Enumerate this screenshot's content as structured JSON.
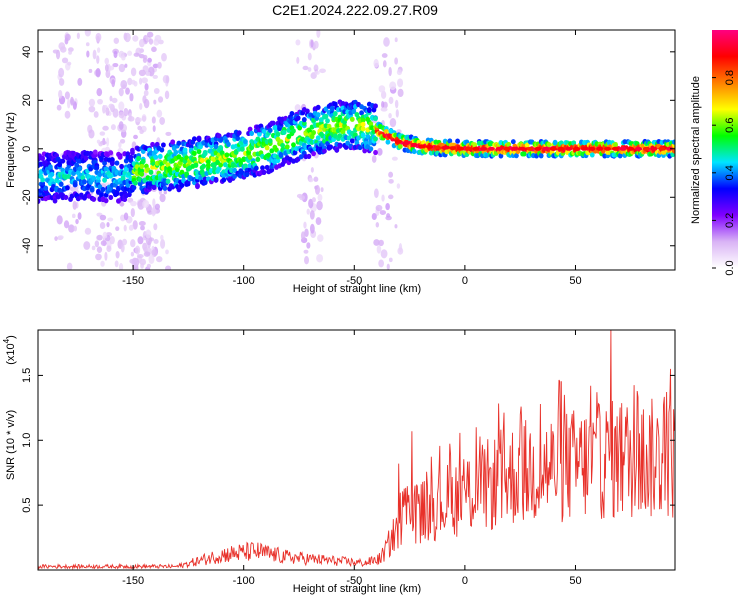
{
  "title": "C2E1.2024.222.09.27.R09",
  "chart_data": [
    {
      "type": "heatmap",
      "xlabel": "Height of straight line (km)",
      "ylabel": "Frequency (Hz)",
      "xlim": [
        -193,
        95
      ],
      "ylim": [
        -50,
        49
      ],
      "xticks": [
        -150,
        -100,
        -50,
        0,
        50
      ],
      "yticks": [
        -40,
        -20,
        0,
        20,
        40
      ],
      "colorbar": {
        "label": "Normalized spectral amplitude",
        "range": [
          0,
          1
        ],
        "ticks": [
          "0.0",
          "0.2",
          "0.4",
          "0.6",
          "0.8"
        ],
        "tick_values": [
          0,
          0.2,
          0.4,
          0.6,
          0.8
        ],
        "colors": [
          "#ffffff",
          "#d9b3f5",
          "#8000ff",
          "#0000ff",
          "#00e5ff",
          "#00ff00",
          "#ffff00",
          "#ff8000",
          "#ff0000",
          "#ff0080"
        ]
      },
      "ridge": [
        {
          "x": -193,
          "y": -12
        },
        {
          "x": -170,
          "y": -11
        },
        {
          "x": -155,
          "y": -12
        },
        {
          "x": -145,
          "y": -8
        },
        {
          "x": -130,
          "y": -7
        },
        {
          "x": -110,
          "y": -4
        },
        {
          "x": -100,
          "y": -2
        },
        {
          "x": -90,
          "y": 0
        },
        {
          "x": -80,
          "y": 4
        },
        {
          "x": -70,
          "y": 7
        },
        {
          "x": -60,
          "y": 9
        },
        {
          "x": -50,
          "y": 10
        },
        {
          "x": -40,
          "y": 8
        },
        {
          "x": -30,
          "y": 3
        },
        {
          "x": -20,
          "y": 1
        },
        {
          "x": 0,
          "y": 0
        },
        {
          "x": 50,
          "y": 0
        },
        {
          "x": 95,
          "y": 0
        }
      ]
    },
    {
      "type": "line",
      "xlabel": "Height of straight line (km)",
      "ylabel": "SNR (10 * v/v)",
      "multiplier_label": "(x10",
      "multiplier_exp": "4",
      "multiplier_close": ")",
      "xlim": [
        -193,
        95
      ],
      "ylim": [
        0,
        1.85
      ],
      "xticks": [
        -150,
        -100,
        -50,
        0,
        50
      ],
      "yticks": [
        0.5,
        1.0,
        1.5
      ],
      "ytick_labels": [
        "0.5",
        "1.0",
        "1.5"
      ],
      "color": "#e8312a",
      "envelope": [
        {
          "x": -193,
          "y": 0.03
        },
        {
          "x": -130,
          "y": 0.03
        },
        {
          "x": -120,
          "y": 0.08
        },
        {
          "x": -110,
          "y": 0.13
        },
        {
          "x": -95,
          "y": 0.16
        },
        {
          "x": -80,
          "y": 0.11
        },
        {
          "x": -60,
          "y": 0.08
        },
        {
          "x": -45,
          "y": 0.06
        },
        {
          "x": -38,
          "y": 0.1
        },
        {
          "x": -32,
          "y": 0.3
        },
        {
          "x": -28,
          "y": 0.5
        },
        {
          "x": -20,
          "y": 0.5
        },
        {
          "x": -10,
          "y": 0.58
        },
        {
          "x": 0,
          "y": 0.65
        },
        {
          "x": 10,
          "y": 0.72
        },
        {
          "x": 20,
          "y": 0.8
        },
        {
          "x": 30,
          "y": 0.85
        },
        {
          "x": 50,
          "y": 0.9
        },
        {
          "x": 70,
          "y": 0.95
        },
        {
          "x": 95,
          "y": 0.95
        }
      ],
      "spikes": [
        {
          "x": -24,
          "y": 1.07
        },
        {
          "x": -30,
          "y": 0.82
        },
        {
          "x": 5,
          "y": 1.1
        },
        {
          "x": 25,
          "y": 1.2
        },
        {
          "x": 45,
          "y": 1.35
        },
        {
          "x": 57,
          "y": 1.42
        },
        {
          "x": 66,
          "y": 1.85
        },
        {
          "x": 78,
          "y": 1.38
        },
        {
          "x": 93,
          "y": 1.55
        }
      ]
    }
  ]
}
